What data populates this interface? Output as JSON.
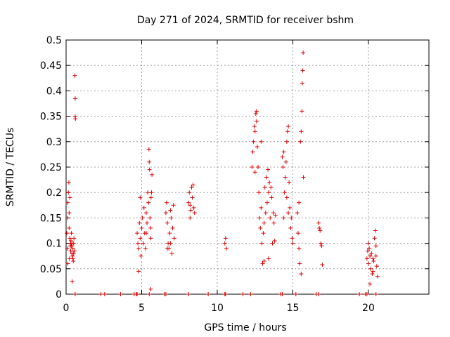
{
  "chart_data": {
    "type": "scatter",
    "title": "Day 271 of 2024, SRMTID for receiver bshm",
    "xlabel": "GPS time / hours",
    "ylabel": "SRMTID / TECUs",
    "xlim": [
      0,
      24
    ],
    "ylim": [
      0,
      0.5
    ],
    "xticks": [
      0,
      5,
      10,
      15,
      20
    ],
    "yticks": [
      0,
      0.05,
      0.1,
      0.15,
      0.2,
      0.25,
      0.3,
      0.35,
      0.4,
      0.45,
      0.5
    ],
    "grid": true,
    "marker": "+",
    "color": "#e00000",
    "series": [
      {
        "name": "SRMTID",
        "points": [
          [
            0.05,
            0.12
          ],
          [
            0.08,
            0.09
          ],
          [
            0.1,
            0.15
          ],
          [
            0.12,
            0.18
          ],
          [
            0.15,
            0.2
          ],
          [
            0.18,
            0.22
          ],
          [
            0.2,
            0.13
          ],
          [
            0.22,
            0.07
          ],
          [
            0.25,
            0.11
          ],
          [
            0.28,
            0.095
          ],
          [
            0.3,
            0.085
          ],
          [
            0.32,
            0.105
          ],
          [
            0.35,
            0.12
          ],
          [
            0.38,
            0.08
          ],
          [
            0.4,
            0.1
          ],
          [
            0.42,
            0.075
          ],
          [
            0.45,
            0.09
          ],
          [
            0.48,
            0.065
          ],
          [
            0.5,
            0.08
          ],
          [
            0.52,
            0.11
          ],
          [
            0.55,
            0.085
          ],
          [
            0.4,
            0.025
          ],
          [
            0.58,
            0.43
          ],
          [
            0.6,
            0.385
          ],
          [
            0.6,
            0.35
          ],
          [
            0.62,
            0.345
          ],
          [
            0.12,
            0.06
          ],
          [
            0.2,
            0.16
          ],
          [
            0.25,
            0.19
          ],
          [
            0.3,
            0.1
          ],
          [
            0.35,
            0.095
          ],
          [
            0.45,
            0.07
          ],
          [
            0.5,
            0.1
          ],
          [
            4.7,
            0.12
          ],
          [
            4.75,
            0.1
          ],
          [
            4.8,
            0.09
          ],
          [
            4.85,
            0.14
          ],
          [
            4.9,
            0.11
          ],
          [
            4.95,
            0.075
          ],
          [
            5.0,
            0.13
          ],
          [
            5.05,
            0.15
          ],
          [
            5.1,
            0.1
          ],
          [
            5.15,
            0.17
          ],
          [
            5.2,
            0.12
          ],
          [
            5.25,
            0.09
          ],
          [
            5.3,
            0.16
          ],
          [
            5.35,
            0.14
          ],
          [
            5.4,
            0.2
          ],
          [
            5.45,
            0.18
          ],
          [
            5.5,
            0.26
          ],
          [
            5.52,
            0.245
          ],
          [
            5.48,
            0.285
          ],
          [
            5.55,
            0.15
          ],
          [
            5.58,
            0.13
          ],
          [
            5.6,
            0.11
          ],
          [
            5.62,
            0.19
          ],
          [
            5.65,
            0.2
          ],
          [
            5.68,
            0.235
          ],
          [
            4.8,
            0.045
          ],
          [
            5.6,
            0.01
          ],
          [
            4.9,
            0.19
          ],
          [
            5.3,
            0.12
          ],
          [
            6.6,
            0.16
          ],
          [
            6.65,
            0.18
          ],
          [
            6.7,
            0.14
          ],
          [
            6.75,
            0.1
          ],
          [
            6.8,
            0.09
          ],
          [
            6.85,
            0.12
          ],
          [
            6.9,
            0.165
          ],
          [
            6.95,
            0.15
          ],
          [
            7.0,
            0.08
          ],
          [
            7.05,
            0.13
          ],
          [
            7.1,
            0.175
          ],
          [
            7.15,
            0.11
          ],
          [
            6.7,
            0.09
          ],
          [
            6.9,
            0.1
          ],
          [
            8.1,
            0.18
          ],
          [
            8.15,
            0.2
          ],
          [
            8.2,
            0.15
          ],
          [
            8.25,
            0.165
          ],
          [
            8.3,
            0.21
          ],
          [
            8.35,
            0.19
          ],
          [
            8.4,
            0.215
          ],
          [
            8.45,
            0.17
          ],
          [
            8.5,
            0.16
          ],
          [
            8.2,
            0.175
          ],
          [
            10.5,
            0.1
          ],
          [
            10.55,
            0.11
          ],
          [
            10.6,
            0.09
          ],
          [
            12.3,
            0.25
          ],
          [
            12.35,
            0.28
          ],
          [
            12.4,
            0.3
          ],
          [
            12.45,
            0.33
          ],
          [
            12.5,
            0.32
          ],
          [
            12.55,
            0.355
          ],
          [
            12.6,
            0.34
          ],
          [
            12.65,
            0.29
          ],
          [
            12.7,
            0.25
          ],
          [
            12.75,
            0.2
          ],
          [
            12.8,
            0.15
          ],
          [
            12.85,
            0.13
          ],
          [
            12.9,
            0.17
          ],
          [
            12.95,
            0.1
          ],
          [
            13.0,
            0.06
          ],
          [
            13.05,
            0.12
          ],
          [
            13.1,
            0.14
          ],
          [
            13.15,
            0.21
          ],
          [
            13.2,
            0.16
          ],
          [
            13.25,
            0.23
          ],
          [
            13.3,
            0.18
          ],
          [
            13.35,
            0.245
          ],
          [
            13.4,
            0.2
          ],
          [
            13.45,
            0.22
          ],
          [
            13.5,
            0.15
          ],
          [
            13.55,
            0.21
          ],
          [
            13.6,
            0.19
          ],
          [
            13.65,
            0.1
          ],
          [
            13.7,
            0.16
          ],
          [
            13.75,
            0.14
          ],
          [
            13.8,
            0.105
          ],
          [
            13.85,
            0.155
          ],
          [
            12.6,
            0.36
          ],
          [
            12.5,
            0.24
          ],
          [
            13.1,
            0.065
          ],
          [
            13.4,
            0.07
          ],
          [
            12.9,
            0.3
          ],
          [
            14.3,
            0.27
          ],
          [
            14.35,
            0.25
          ],
          [
            14.4,
            0.28
          ],
          [
            14.45,
            0.2
          ],
          [
            14.5,
            0.23
          ],
          [
            14.55,
            0.26
          ],
          [
            14.6,
            0.3
          ],
          [
            14.65,
            0.32
          ],
          [
            14.7,
            0.33
          ],
          [
            14.75,
            0.22
          ],
          [
            14.8,
            0.17
          ],
          [
            14.85,
            0.13
          ],
          [
            14.9,
            0.15
          ],
          [
            14.95,
            0.11
          ],
          [
            15.0,
            0.1
          ],
          [
            14.4,
            0.15
          ],
          [
            14.6,
            0.19
          ],
          [
            14.7,
            0.16
          ],
          [
            15.3,
            0.16
          ],
          [
            15.35,
            0.12
          ],
          [
            15.4,
            0.09
          ],
          [
            15.45,
            0.06
          ],
          [
            15.5,
            0.3
          ],
          [
            15.55,
            0.32
          ],
          [
            15.6,
            0.36
          ],
          [
            15.62,
            0.415
          ],
          [
            15.65,
            0.44
          ],
          [
            15.68,
            0.475
          ],
          [
            15.7,
            0.23
          ],
          [
            15.55,
            0.04
          ],
          [
            15.4,
            0.18
          ],
          [
            16.7,
            0.14
          ],
          [
            16.75,
            0.13
          ],
          [
            16.8,
            0.125
          ],
          [
            16.85,
            0.1
          ],
          [
            16.9,
            0.095
          ],
          [
            16.95,
            0.058
          ],
          [
            19.9,
            0.07
          ],
          [
            19.95,
            0.085
          ],
          [
            20.0,
            0.06
          ],
          [
            20.05,
            0.09
          ],
          [
            20.1,
            0.075
          ],
          [
            20.15,
            0.05
          ],
          [
            20.2,
            0.08
          ],
          [
            20.25,
            0.04
          ],
          [
            20.3,
            0.07
          ],
          [
            20.35,
            0.065
          ],
          [
            20.4,
            0.11
          ],
          [
            20.45,
            0.125
          ],
          [
            20.5,
            0.095
          ],
          [
            20.55,
            0.055
          ],
          [
            20.6,
            0.035
          ],
          [
            20.1,
            0.02
          ],
          [
            20.0,
            0.1
          ],
          [
            20.3,
            0.045
          ],
          [
            20.5,
            0.075
          ],
          [
            0.6,
            0
          ],
          [
            2.3,
            0
          ],
          [
            2.55,
            0
          ],
          [
            3.6,
            0
          ],
          [
            4.5,
            0
          ],
          [
            4.65,
            0
          ],
          [
            4.7,
            0
          ],
          [
            5.5,
            0
          ],
          [
            6.5,
            0
          ],
          [
            6.6,
            0
          ],
          [
            8.1,
            0
          ],
          [
            9.4,
            0
          ],
          [
            10.5,
            0
          ],
          [
            10.55,
            0
          ],
          [
            11.7,
            0
          ],
          [
            12.2,
            0
          ],
          [
            14.2,
            0
          ],
          [
            14.3,
            0
          ],
          [
            15.2,
            0
          ],
          [
            16.55,
            0
          ],
          [
            16.7,
            0
          ],
          [
            19.4,
            0
          ],
          [
            19.8,
            0
          ],
          [
            19.9,
            0
          ],
          [
            20.5,
            0
          ]
        ]
      }
    ]
  }
}
